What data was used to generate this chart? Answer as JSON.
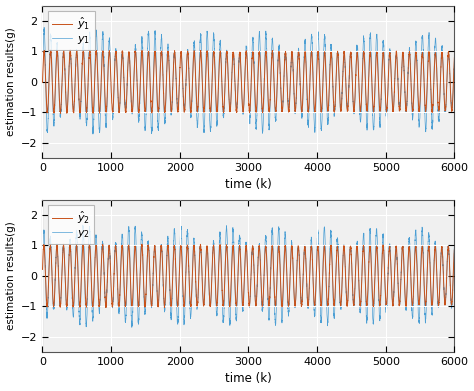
{
  "N": 6001,
  "xlim": [
    0,
    6000
  ],
  "ylim": [
    -2.5,
    2.5
  ],
  "yticks": [
    -2,
    -1,
    0,
    1,
    2
  ],
  "xticks": [
    0,
    1000,
    2000,
    3000,
    4000,
    5000,
    6000
  ],
  "xlabel": "time (k)",
  "ylabel": "estimation results(g)",
  "color_y": "#4C9FD4",
  "color_yhat": "#C8521A",
  "legend1": [
    "$y_1$",
    "$\\hat{y}_1$"
  ],
  "legend2": [
    "$y_2$",
    "$\\hat{y}_2$"
  ],
  "linewidth_y": 0.5,
  "linewidth_yhat": 0.7,
  "background_color": "#ffffff",
  "ax_facecolor": "#f0f0f0",
  "grid_color": "#ffffff",
  "figsize": [
    4.74,
    3.91
  ],
  "dpi": 100
}
